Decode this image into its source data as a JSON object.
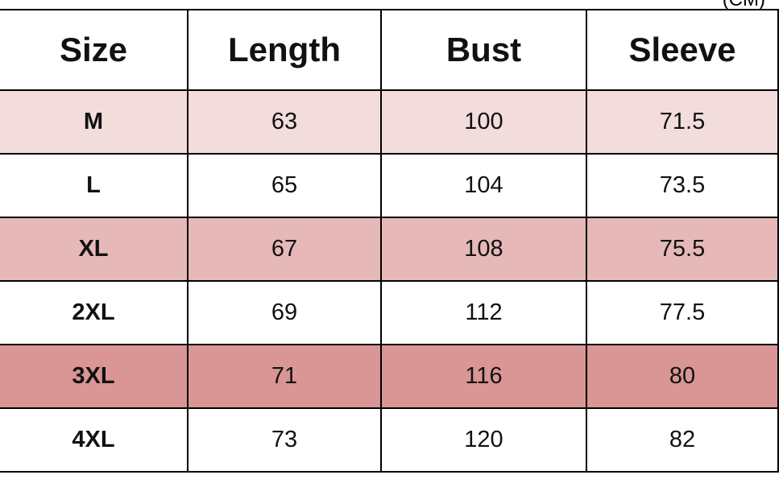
{
  "unit": "(CM)",
  "table": {
    "header": [
      "Size",
      "Length",
      "Bust",
      "Sleeve"
    ],
    "rows": [
      [
        "M",
        63,
        100,
        71.5
      ],
      [
        "L",
        65,
        104,
        73.5
      ],
      [
        "XL",
        67,
        108,
        75.5
      ],
      [
        "2XL",
        69,
        112,
        77.5
      ],
      [
        "3XL",
        71,
        116,
        80
      ],
      [
        "4XL",
        73,
        120,
        82
      ]
    ]
  }
}
